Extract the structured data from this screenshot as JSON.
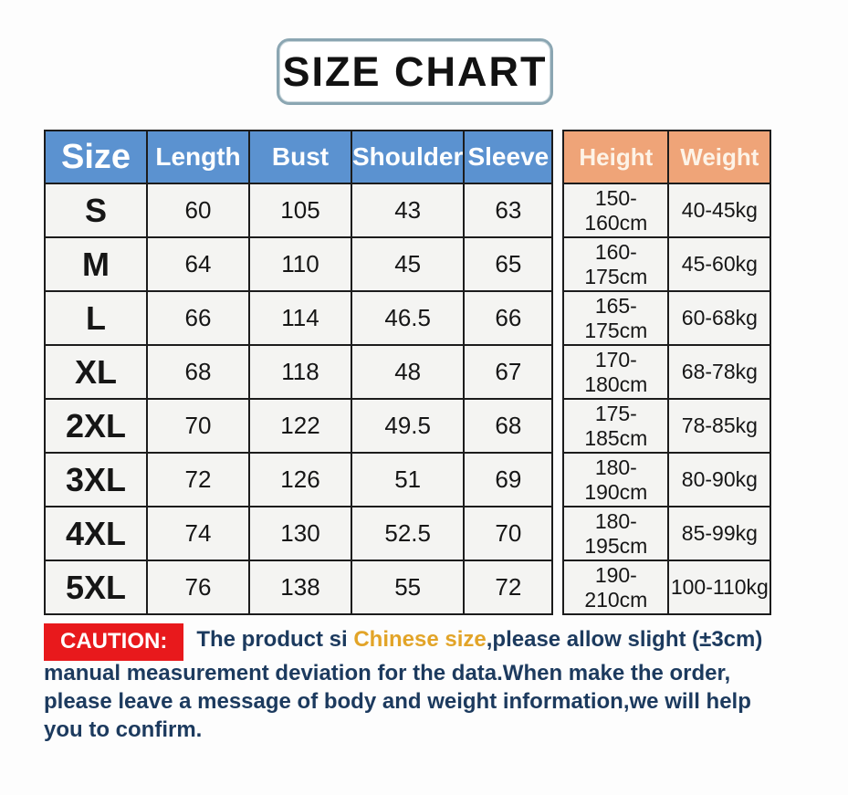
{
  "title": "SIZE CHART",
  "colors": {
    "header_blue": "#5b92d0",
    "header_orange": "#efa478",
    "caution_red": "#e8191c",
    "body_text": "#161616",
    "caution_navy": "#1c3a5e",
    "highlight_gold": "#e2a428"
  },
  "table": {
    "headers": [
      "Size",
      "Length",
      "Bust",
      "Shoulder",
      "Sleeve",
      "Height",
      "Weight"
    ],
    "rows": [
      {
        "size": "S",
        "length": "60",
        "bust": "105",
        "shoulder": "43",
        "sleeve": "63",
        "height": "150-160cm",
        "weight": "40-45kg"
      },
      {
        "size": "M",
        "length": "64",
        "bust": "110",
        "shoulder": "45",
        "sleeve": "65",
        "height": "160-175cm",
        "weight": "45-60kg"
      },
      {
        "size": "L",
        "length": "66",
        "bust": "114",
        "shoulder": "46.5",
        "sleeve": "66",
        "height": "165-175cm",
        "weight": "60-68kg"
      },
      {
        "size": "XL",
        "length": "68",
        "bust": "118",
        "shoulder": "48",
        "sleeve": "67",
        "height": "170-180cm",
        "weight": "68-78kg"
      },
      {
        "size": "2XL",
        "length": "70",
        "bust": "122",
        "shoulder": "49.5",
        "sleeve": "68",
        "height": "175-185cm",
        "weight": "78-85kg"
      },
      {
        "size": "3XL",
        "length": "72",
        "bust": "126",
        "shoulder": "51",
        "sleeve": "69",
        "height": "180-190cm",
        "weight": "80-90kg"
      },
      {
        "size": "4XL",
        "length": "74",
        "bust": "130",
        "shoulder": "52.5",
        "sleeve": "70",
        "height": "180-195cm",
        "weight": "85-99kg"
      },
      {
        "size": "5XL",
        "length": "76",
        "bust": "138",
        "shoulder": "55",
        "sleeve": "72",
        "height": "190-210cm",
        "weight": "100-110kg"
      }
    ]
  },
  "caution": {
    "label": "CAUTION:",
    "line1_before": "The product si ",
    "line1_highlight": "Chinese size",
    "line1_after": ",please allow slight (±3cm)",
    "line2": "manual measurement deviation for the data.When make the order,",
    "line3": "please leave a message of body and weight information,we will help",
    "line4": "you to confirm."
  }
}
